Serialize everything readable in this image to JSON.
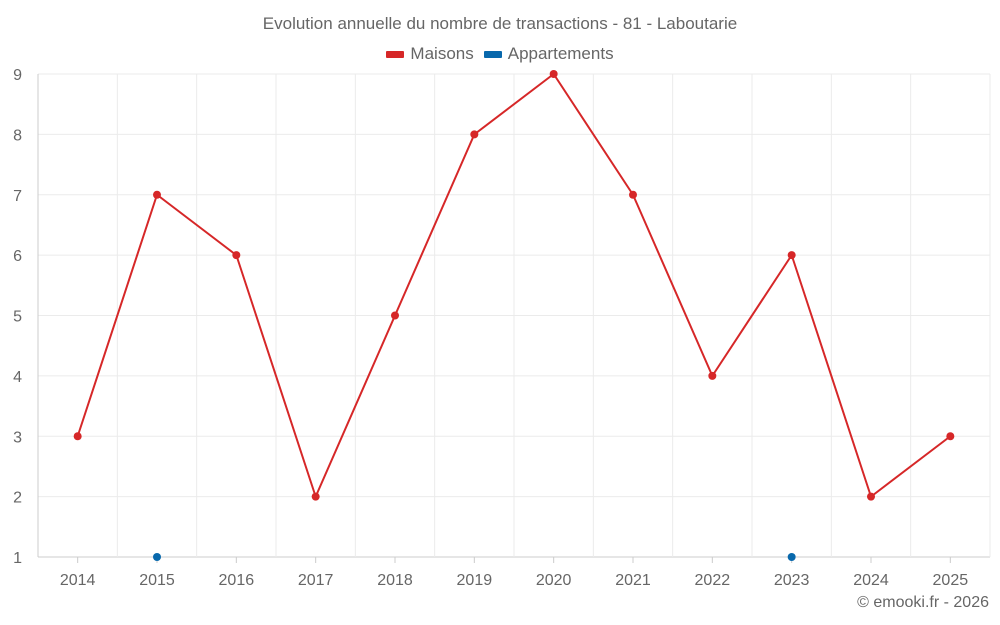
{
  "chart_data": {
    "type": "line",
    "title": "Evolution annuelle du nombre de transactions - 81 - Laboutarie",
    "categories": [
      "2014",
      "2015",
      "2016",
      "2017",
      "2018",
      "2019",
      "2020",
      "2021",
      "2022",
      "2023",
      "2024",
      "2025"
    ],
    "series": [
      {
        "name": "Maisons",
        "color": "#d62728",
        "values": [
          3,
          7,
          6,
          2,
          5,
          8,
          9,
          7,
          4,
          6,
          2,
          3
        ]
      },
      {
        "name": "Appartements",
        "color": "#0868ac",
        "values": [
          null,
          1,
          null,
          null,
          null,
          null,
          null,
          null,
          null,
          1,
          null,
          null
        ]
      }
    ],
    "ylim": [
      1,
      9
    ],
    "yticks": [
      1,
      2,
      3,
      4,
      5,
      6,
      7,
      8,
      9
    ],
    "grid": true,
    "legend_position": "top-center"
  },
  "credit": "© emooki.fr - 2026"
}
